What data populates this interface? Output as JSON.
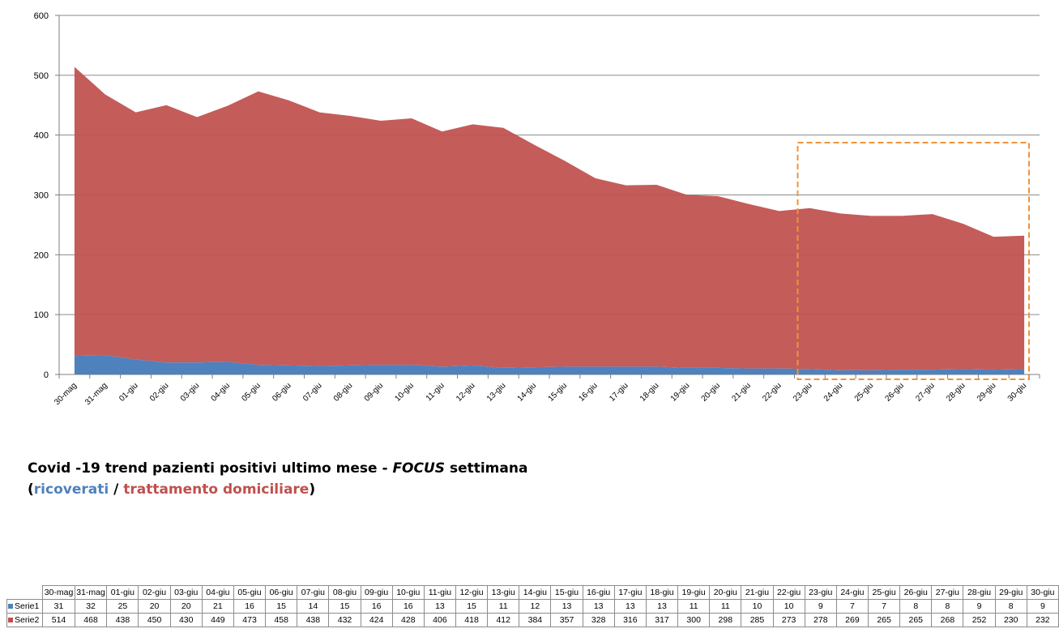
{
  "chart_data": {
    "type": "area",
    "stacked": true,
    "categories": [
      "30-mag",
      "31-mag",
      "01-giu",
      "02-giu",
      "03-giu",
      "04-giu",
      "05-giu",
      "06-giu",
      "07-giu",
      "08-giu",
      "09-giu",
      "10-giu",
      "11-giu",
      "12-giu",
      "13-giu",
      "14-giu",
      "15-giu",
      "16-giu",
      "17-giu",
      "18-giu",
      "19-giu",
      "20-giu",
      "21-giu",
      "22-giu",
      "23-giu",
      "24-giu",
      "25-giu",
      "26-giu",
      "27-giu",
      "28-giu",
      "29-giu",
      "30-giu"
    ],
    "series": [
      {
        "name": "Serie1",
        "color": "#4f81bd",
        "values": [
          31,
          32,
          25,
          20,
          20,
          21,
          16,
          15,
          14,
          15,
          16,
          16,
          13,
          15,
          11,
          12,
          13,
          13,
          13,
          13,
          11,
          11,
          10,
          10,
          9,
          7,
          7,
          8,
          8,
          9,
          8,
          9
        ]
      },
      {
        "name": "Serie2",
        "color": "#c0504d",
        "values": [
          514,
          468,
          438,
          450,
          430,
          449,
          473,
          458,
          438,
          432,
          424,
          428,
          406,
          418,
          412,
          384,
          357,
          328,
          316,
          317,
          300,
          298,
          285,
          273,
          278,
          269,
          265,
          265,
          268,
          252,
          230,
          232
        ]
      }
    ],
    "ylim": [
      0,
      600
    ],
    "yticks": [
      "0",
      "100",
      "200",
      "300",
      "400",
      "500",
      "600"
    ],
    "grid": true,
    "highlight": {
      "from": "23-giu",
      "to": "30-giu",
      "style": "dashed",
      "color": "#f0923c"
    }
  },
  "caption": {
    "line1_prefix": "Covid -19 trend pazienti positivi ultimo mese - ",
    "line1_focus": "FOCUS",
    "line1_suffix": " settimana",
    "paren_open": "(",
    "ricoverati": "ricoverati",
    "slash": " / ",
    "domiciliare": "trattamento domiciliare",
    "paren_close": ")"
  }
}
